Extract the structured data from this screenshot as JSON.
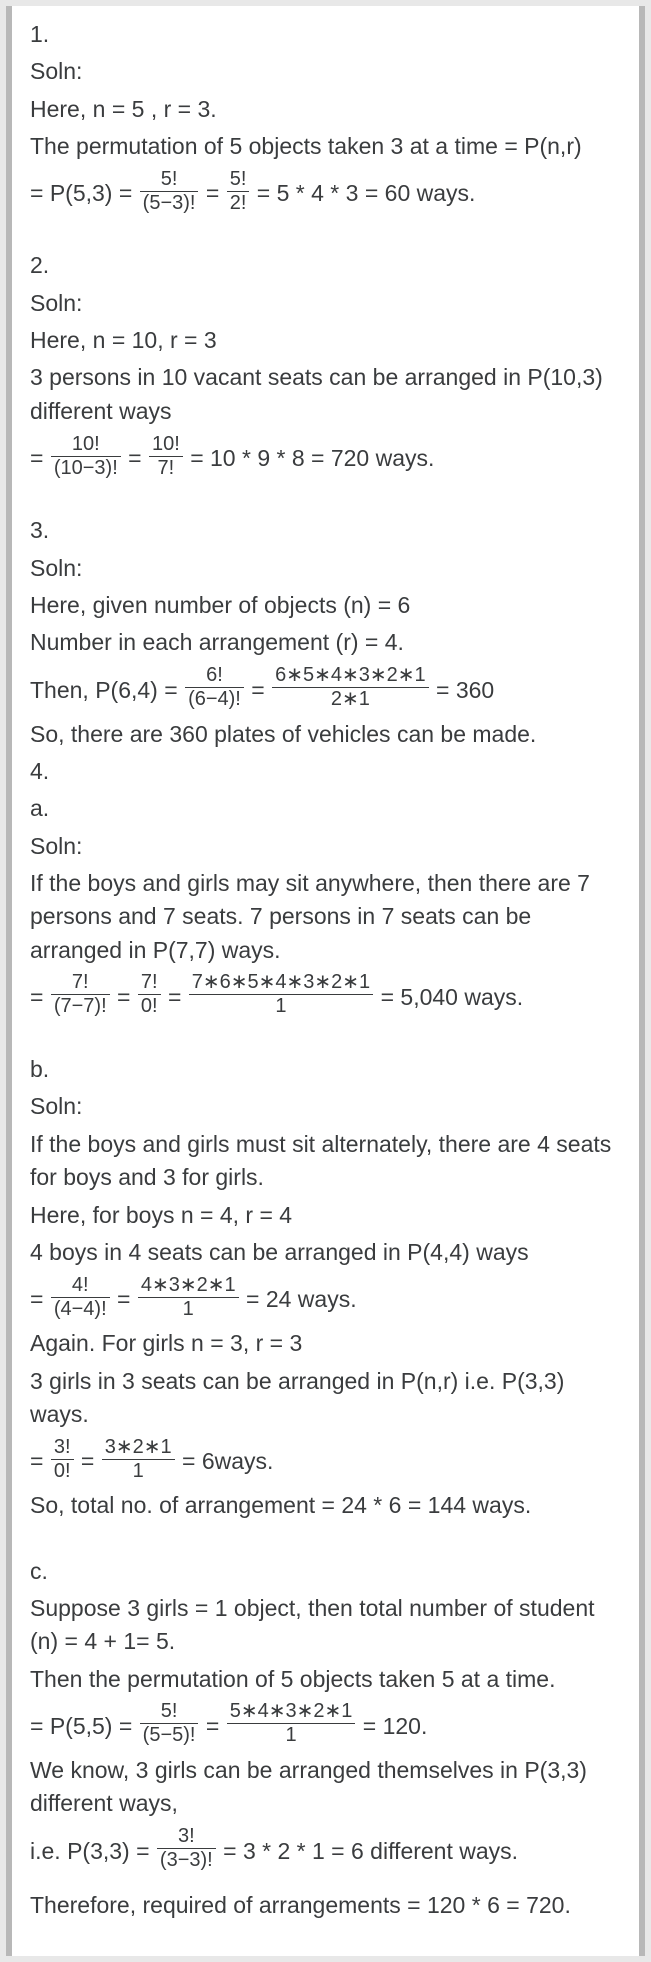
{
  "q1": {
    "num": "1.",
    "soln": "Soln:",
    "l1": "Here, n = 5 , r = 3.",
    "l2": "The permutation of 5 objects taken 3 at a time = P(n,r)",
    "eq_lead": "= P(5,3) = ",
    "fr1_num": "5!",
    "fr1_den": "(5−3)!",
    "eq_mid1": " = ",
    "fr2_num": "5!",
    "fr2_den": "2!",
    "eq_tail": " = 5 * 4 * 3 = 60 ways."
  },
  "q2": {
    "num": "2.",
    "soln": "Soln:",
    "l1": "Here, n = 10, r = 3",
    "l2": "3 persons in 10 vacant seats can be arranged in P(10,3) different ways",
    "eq_lead": "= ",
    "fr1_num": "10!",
    "fr1_den": "(10−3)!",
    "eq_mid1": " = ",
    "fr2_num": "10!",
    "fr2_den": "7!",
    "eq_tail": " = 10 * 9 * 8 = 720 ways."
  },
  "q3": {
    "num": "3.",
    "soln": "Soln:",
    "l1": "Here, given number of objects (n) = 6",
    "l2": "Number in each arrangement (r) = 4.",
    "eq_lead": "Then, P(6,4) = ",
    "fr1_num": "6!",
    "fr1_den": "(6−4)!",
    "eq_mid1": " = ",
    "fr2_num": "6∗5∗4∗3∗2∗1",
    "fr2_den": "2∗1",
    "eq_tail": " = 360",
    "l3": "So, there are 360 plates of vehicles can be made."
  },
  "q4": {
    "num": "4.",
    "a": {
      "label": "a.",
      "soln": "Soln:",
      "l1": "If the boys and girls may sit anywhere, then there are 7 persons and 7 seats. 7 persons in 7 seats can be arranged in P(7,7) ways.",
      "eq_lead": "= ",
      "fr1_num": "7!",
      "fr1_den": "(7−7)!",
      "eq_mid1": " = ",
      "fr2_num": "7!",
      "fr2_den": "0!",
      "eq_mid2": " = ",
      "fr3_num": "7∗6∗5∗4∗3∗2∗1",
      "fr3_den": "1",
      "eq_tail": " = 5,040 ways."
    },
    "b": {
      "label": "b.",
      "soln": "Soln:",
      "l1": "If the boys and girls must sit alternately, there are 4 seats for boys and 3 for girls.",
      "l2": "Here, for boys n = 4, r = 4",
      "l3": "4 boys in 4 seats can be arranged in P(4,4) ways",
      "eq1_lead": "= ",
      "eq1_fr1_num": "4!",
      "eq1_fr1_den": "(4−4)!",
      "eq1_mid1": " = ",
      "eq1_fr2_num": "4∗3∗2∗1",
      "eq1_fr2_den": "1",
      "eq1_tail": " = 24 ways.",
      "l4": "Again. For girls n = 3, r = 3",
      "l5": "3 girls in 3 seats can be arranged in P(n,r) i.e. P(3,3) ways.",
      "eq2_lead": "= ",
      "eq2_fr1_num": "3!",
      "eq2_fr1_den": "0!",
      "eq2_mid1": " = ",
      "eq2_fr2_num": "3∗2∗1",
      "eq2_fr2_den": "1",
      "eq2_tail": " = 6ways.",
      "l6": "So, total no. of arrangement = 24 * 6 = 144 ways."
    },
    "c": {
      "label": "c.",
      "l1": "Suppose 3 girls = 1 object, then total number of student (n) = 4 + 1= 5.",
      "l2": "Then the permutation of 5 objects taken 5 at a time.",
      "eq1_lead": "= P(5,5) = ",
      "eq1_fr1_num": "5!",
      "eq1_fr1_den": "(5−5)!",
      "eq1_mid1": " = ",
      "eq1_fr2_num": "5∗4∗3∗2∗1",
      "eq1_fr2_den": "1",
      "eq1_tail": " = 120.",
      "l3": "We know, 3 girls can be arranged themselves in P(3,3) different ways,",
      "eq2_lead": "i.e. P(3,3) = ",
      "eq2_fr1_num": "3!",
      "eq2_fr1_den": "(3−3)!",
      "eq2_tail": " = 3 * 2 * 1 = 6 different ways.",
      "l4": "Therefore, required of arrangements = 120 * 6 = 720."
    }
  }
}
